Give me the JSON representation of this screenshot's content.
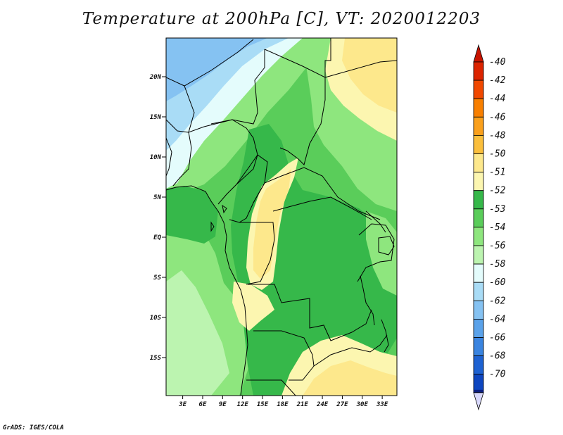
{
  "title": "Temperature at 200hPa [C], VT: 2020012203",
  "footer": "GrADS: IGES/COLA",
  "map": {
    "lat_labels": [
      {
        "label": "20N",
        "lat": 20
      },
      {
        "label": "15N",
        "lat": 15
      },
      {
        "label": "10N",
        "lat": 10
      },
      {
        "label": "5N",
        "lat": 5
      },
      {
        "label": "EQ",
        "lat": 0
      },
      {
        "label": "5S",
        "lat": -5
      },
      {
        "label": "10S",
        "lat": -10
      },
      {
        "label": "15S",
        "lat": -15
      }
    ],
    "lon_labels": [
      {
        "label": "3E",
        "lon": 3
      },
      {
        "label": "6E",
        "lon": 6
      },
      {
        "label": "9E",
        "lon": 9
      },
      {
        "label": "12E",
        "lon": 12
      },
      {
        "label": "15E",
        "lon": 15
      },
      {
        "label": "18E",
        "lon": 18
      },
      {
        "label": "21E",
        "lon": 21
      },
      {
        "label": "24E",
        "lon": 24
      },
      {
        "label": "27E",
        "lon": 27
      },
      {
        "label": "30E",
        "lon": 30
      },
      {
        "label": "33E",
        "lon": 33
      }
    ]
  },
  "colorbar": {
    "levels": [
      {
        "label": "-40",
        "color": "#dc2400"
      },
      {
        "label": "-42",
        "color": "#f04800"
      },
      {
        "label": "-44",
        "color": "#f87f00"
      },
      {
        "label": "-46",
        "color": "#faa01c"
      },
      {
        "label": "-48",
        "color": "#fbbf3c"
      },
      {
        "label": "-50",
        "color": "#fde88c"
      },
      {
        "label": "-51",
        "color": "#fcf6b0"
      },
      {
        "label": "-52",
        "color": "#36b84a"
      },
      {
        "label": "-53",
        "color": "#5acd5a"
      },
      {
        "label": "-54",
        "color": "#8ee67e"
      },
      {
        "label": "-56",
        "color": "#bcf4b0"
      },
      {
        "label": "-58",
        "color": "#e4fcfc"
      },
      {
        "label": "-60",
        "color": "#a9dcf6"
      },
      {
        "label": "-62",
        "color": "#85c2f2"
      },
      {
        "label": "-64",
        "color": "#5aa2ea"
      },
      {
        "label": "-66",
        "color": "#3a84e0"
      },
      {
        "label": "-68",
        "color": "#1e62d2"
      },
      {
        "label": "-70",
        "color": "#0e46c0"
      }
    ],
    "top_arrow_color": "#c81400",
    "bottom_arrow_color": "#d8d8fc",
    "bottom_band_color": "#0a1e80"
  },
  "colors": {
    "green_dark": "#36b84a",
    "green_mid": "#5acd5a",
    "green_light": "#8ee67e",
    "green_pale": "#bcf4b0",
    "cyan_pale": "#e4fcfc",
    "blue_light": "#a9dcf6",
    "blue_mid": "#85c2f2",
    "yellow_pale": "#fcf6b0",
    "yellow": "#fde88c"
  }
}
